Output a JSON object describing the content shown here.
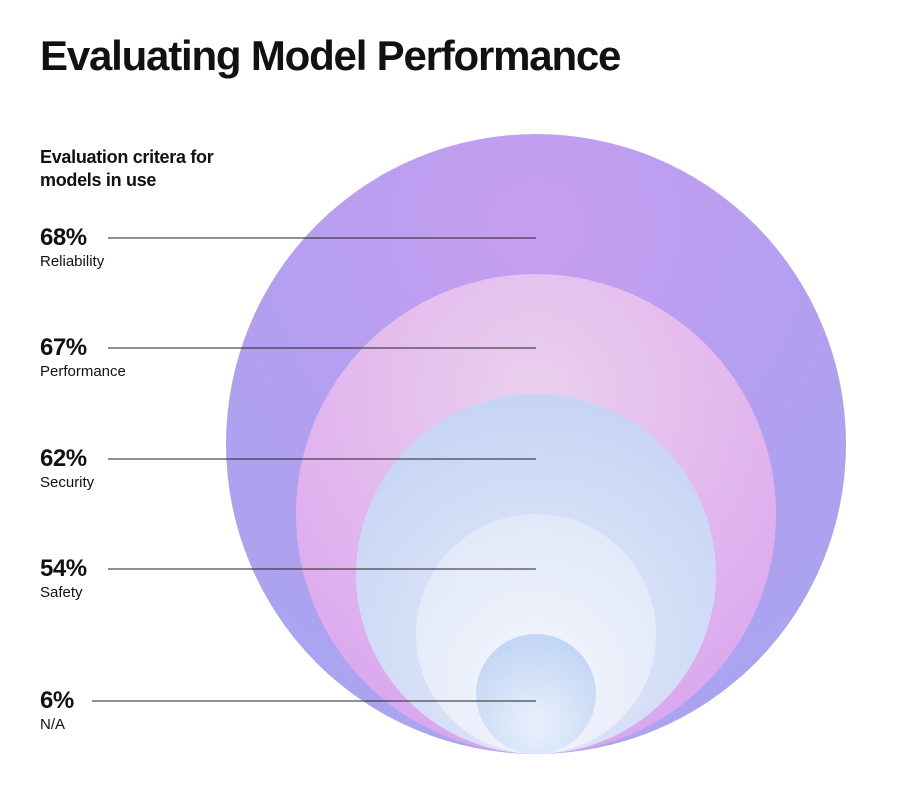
{
  "chart_data": {
    "type": "nested-circles",
    "title": "Evaluating Model Performance",
    "subtitle": "Evaluation critera for models in use",
    "unit": "%",
    "categories": [
      "Reliability",
      "Performance",
      "Security",
      "Safety",
      "N/A"
    ],
    "values": [
      68,
      67,
      62,
      54,
      6
    ],
    "value_labels": [
      "68%",
      "67%",
      "62%",
      "54%",
      "6%"
    ]
  },
  "colors": {
    "ring_1": "#b9a0ee",
    "ring_2": "#e2b8ee",
    "ring_3": "#c8d6f6",
    "ring_4": "#e8eef9",
    "ring_5": "#c8dcf6",
    "leader_line": "#222222",
    "text": "#111111"
  }
}
